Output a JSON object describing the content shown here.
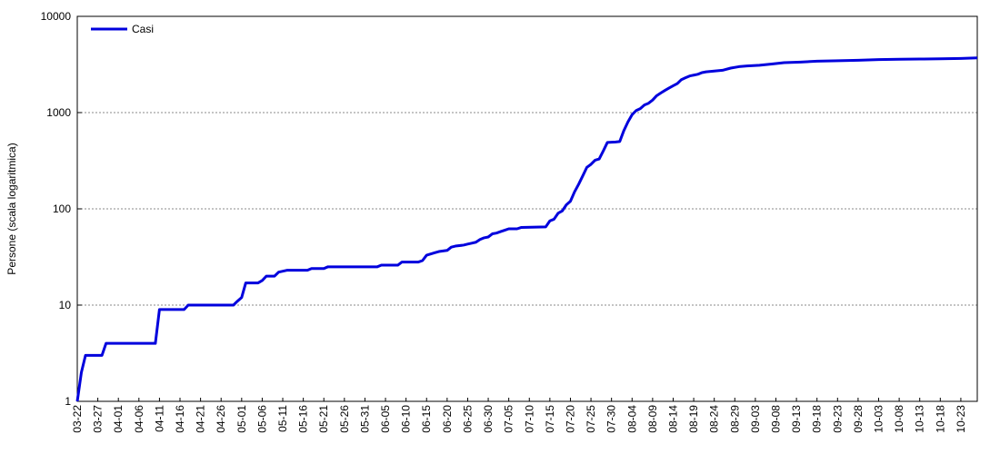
{
  "chart_data": {
    "type": "line",
    "title": "",
    "xlabel": "",
    "ylabel": "Persone (scala logaritmica)",
    "y_scale": "log",
    "ylim": [
      1,
      10000
    ],
    "y_ticks": [
      1,
      10,
      100,
      1000,
      10000
    ],
    "grid": "horizontal dotted",
    "legend_position": "top-left",
    "x_start": "2020-03-22",
    "x_end": "2020-10-27",
    "x_tick_labels": [
      "03-22",
      "03-27",
      "04-01",
      "04-06",
      "04-11",
      "04-16",
      "04-21",
      "04-26",
      "05-01",
      "05-06",
      "05-11",
      "05-16",
      "05-21",
      "05-26",
      "05-31",
      "06-05",
      "06-10",
      "06-15",
      "06-20",
      "06-25",
      "06-30",
      "07-05",
      "07-10",
      "07-15",
      "07-20",
      "07-25",
      "07-30",
      "08-04",
      "08-09",
      "08-14",
      "08-19",
      "08-24",
      "08-29",
      "09-03",
      "09-08",
      "09-13",
      "09-18",
      "09-23",
      "09-28",
      "10-03",
      "10-08",
      "10-13",
      "10-18",
      "10-23"
    ],
    "series": [
      {
        "name": "Casi",
        "color": "#0000dd",
        "points": [
          [
            "03-22",
            1
          ],
          [
            "03-23",
            2
          ],
          [
            "03-24",
            3
          ],
          [
            "03-27",
            3
          ],
          [
            "03-28",
            3
          ],
          [
            "03-29",
            4
          ],
          [
            "04-10",
            4
          ],
          [
            "04-11",
            9
          ],
          [
            "04-17",
            9
          ],
          [
            "04-18",
            10
          ],
          [
            "04-29",
            10
          ],
          [
            "04-30",
            11
          ],
          [
            "05-01",
            12
          ],
          [
            "05-02",
            17
          ],
          [
            "05-05",
            17
          ],
          [
            "05-06",
            18
          ],
          [
            "05-07",
            20
          ],
          [
            "05-09",
            20
          ],
          [
            "05-10",
            22
          ],
          [
            "05-12",
            23
          ],
          [
            "05-17",
            23
          ],
          [
            "05-18",
            24
          ],
          [
            "05-21",
            24
          ],
          [
            "05-22",
            25
          ],
          [
            "06-03",
            25
          ],
          [
            "06-04",
            26
          ],
          [
            "06-08",
            26
          ],
          [
            "06-09",
            28
          ],
          [
            "06-13",
            28
          ],
          [
            "06-14",
            29
          ],
          [
            "06-15",
            33
          ],
          [
            "06-16",
            34
          ],
          [
            "06-17",
            35
          ],
          [
            "06-18",
            36
          ],
          [
            "06-20",
            37
          ],
          [
            "06-21",
            40
          ],
          [
            "06-22",
            41
          ],
          [
            "06-24",
            42
          ],
          [
            "06-25",
            43
          ],
          [
            "06-26",
            44
          ],
          [
            "06-27",
            45
          ],
          [
            "06-28",
            48
          ],
          [
            "06-29",
            50
          ],
          [
            "06-30",
            51
          ],
          [
            "07-01",
            55
          ],
          [
            "07-02",
            56
          ],
          [
            "07-03",
            58
          ],
          [
            "07-04",
            60
          ],
          [
            "07-05",
            62
          ],
          [
            "07-07",
            62
          ],
          [
            "07-08",
            64
          ],
          [
            "07-14",
            65
          ],
          [
            "07-15",
            75
          ],
          [
            "07-16",
            78
          ],
          [
            "07-17",
            90
          ],
          [
            "07-18",
            95
          ],
          [
            "07-19",
            110
          ],
          [
            "07-20",
            120
          ],
          [
            "07-21",
            150
          ],
          [
            "07-22",
            180
          ],
          [
            "07-23",
            220
          ],
          [
            "07-24",
            270
          ],
          [
            "07-25",
            290
          ],
          [
            "07-26",
            320
          ],
          [
            "07-27",
            330
          ],
          [
            "07-28",
            400
          ],
          [
            "07-29",
            490
          ],
          [
            "07-31",
            495
          ],
          [
            "08-01",
            500
          ],
          [
            "08-02",
            650
          ],
          [
            "08-03",
            800
          ],
          [
            "08-04",
            950
          ],
          [
            "08-05",
            1050
          ],
          [
            "08-06",
            1100
          ],
          [
            "08-07",
            1200
          ],
          [
            "08-08",
            1250
          ],
          [
            "08-09",
            1350
          ],
          [
            "08-10",
            1500
          ],
          [
            "08-11",
            1600
          ],
          [
            "08-12",
            1700
          ],
          [
            "08-13",
            1800
          ],
          [
            "08-14",
            1900
          ],
          [
            "08-15",
            2000
          ],
          [
            "08-16",
            2200
          ],
          [
            "08-17",
            2300
          ],
          [
            "08-18",
            2400
          ],
          [
            "08-19",
            2450
          ],
          [
            "08-20",
            2500
          ],
          [
            "08-21",
            2600
          ],
          [
            "08-22",
            2650
          ],
          [
            "08-24",
            2700
          ],
          [
            "08-26",
            2750
          ],
          [
            "08-28",
            2900
          ],
          [
            "08-30",
            3000
          ],
          [
            "09-01",
            3050
          ],
          [
            "09-04",
            3100
          ],
          [
            "09-07",
            3200
          ],
          [
            "09-10",
            3300
          ],
          [
            "09-14",
            3350
          ],
          [
            "09-18",
            3420
          ],
          [
            "09-22",
            3450
          ],
          [
            "09-28",
            3500
          ],
          [
            "10-03",
            3550
          ],
          [
            "10-08",
            3580
          ],
          [
            "10-13",
            3600
          ],
          [
            "10-18",
            3620
          ],
          [
            "10-23",
            3650
          ],
          [
            "10-27",
            3700
          ]
        ]
      }
    ]
  }
}
